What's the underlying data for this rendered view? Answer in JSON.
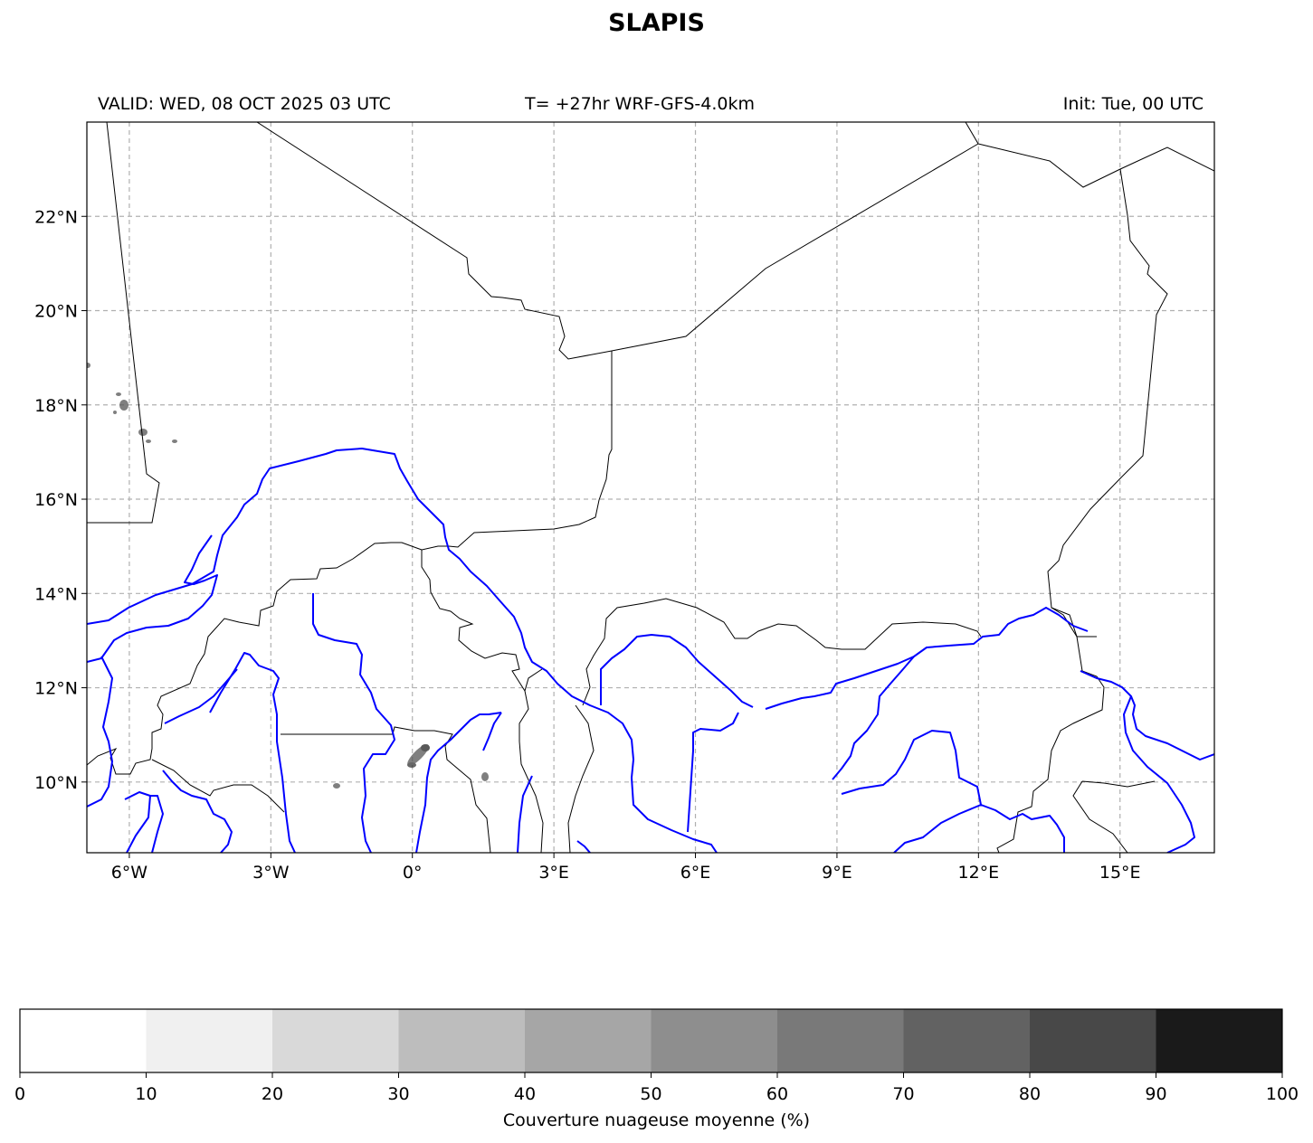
{
  "title": "SLAPIS",
  "header": {
    "valid": "VALID: WED, 08 OCT 2025 03 UTC",
    "run": "T= +27hr WRF-GFS-4.0km",
    "init": "Init: Tue, 00 UTC"
  },
  "map": {
    "lon_range": [
      -6.9,
      17.0
    ],
    "lat_range": [
      8.5,
      24.0
    ],
    "x_ticks": [
      "6°W",
      "3°W",
      "0°",
      "3°E",
      "6°E",
      "9°E",
      "12°E",
      "15°E"
    ],
    "x_tick_values": [
      -6,
      -3,
      0,
      3,
      6,
      9,
      12,
      15
    ],
    "y_ticks": [
      "22°N",
      "20°N",
      "18°N",
      "16°N",
      "14°N",
      "12°N",
      "10°N"
    ],
    "y_tick_values": [
      22,
      20,
      18,
      16,
      14,
      12,
      10
    ],
    "gridlines": true,
    "colors": {
      "rivers": "#0000ff",
      "borders": "#000000",
      "grid": "#b0b0b0"
    }
  },
  "colorbar": {
    "ticks": [
      "0",
      "10",
      "20",
      "30",
      "40",
      "50",
      "60",
      "70",
      "80",
      "90",
      "100"
    ],
    "colors": [
      "#ffffff",
      "#f0f0f0",
      "#d9d9d9",
      "#bdbdbd",
      "#a6a6a6",
      "#8e8e8e",
      "#797979",
      "#626262",
      "#484848",
      "#1a1a1a"
    ],
    "label": "Couverture nuageuse moyenne (%)"
  }
}
